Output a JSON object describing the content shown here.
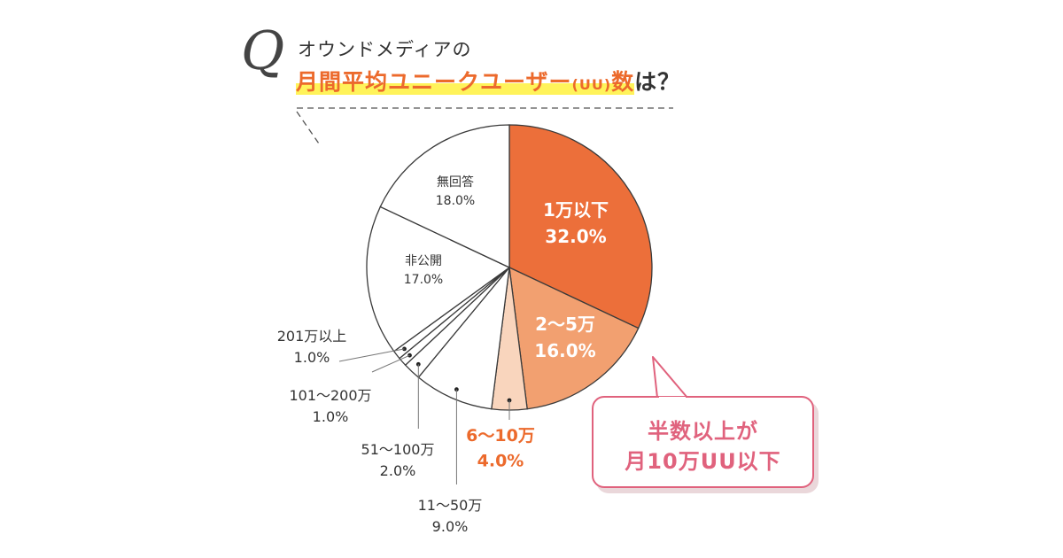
{
  "question": {
    "mark": "Q",
    "line1": "オウンドメディアの",
    "highlight": "月間平均ユニークユーザー",
    "highlight_small": "(UU)",
    "highlight_end": "数",
    "tail": "は？"
  },
  "callout": {
    "line1": "半数以上が",
    "line2": "月10万UU以下"
  },
  "colors": {
    "slice_1": "#ec6f3a",
    "slice_2": "#f2a070",
    "slice_3": "#f9d5bd",
    "slice_other": "#ffffff",
    "label_dark": "#333333",
    "label_orange": "#ec6a2c",
    "callout": "#e0627d"
  },
  "chart_data": {
    "type": "pie",
    "title": "",
    "start": "12 o'clock, clockwise",
    "slices": [
      {
        "label": "1万以下",
        "value": 32.0,
        "display": "32.0%"
      },
      {
        "label": "2〜5万",
        "value": 16.0,
        "display": "16.0%"
      },
      {
        "label": "6〜10万",
        "value": 4.0,
        "display": "4.0%"
      },
      {
        "label": "11〜50万",
        "value": 9.0,
        "display": "9.0%"
      },
      {
        "label": "51〜100万",
        "value": 2.0,
        "display": "2.0%"
      },
      {
        "label": "101〜200万",
        "value": 1.0,
        "display": "1.0%"
      },
      {
        "label": "201万以上",
        "value": 1.0,
        "display": "1.0%"
      },
      {
        "label": "非公開",
        "value": 17.0,
        "display": "17.0%"
      },
      {
        "label": "無回答",
        "value": 18.0,
        "display": "18.0%"
      }
    ]
  }
}
